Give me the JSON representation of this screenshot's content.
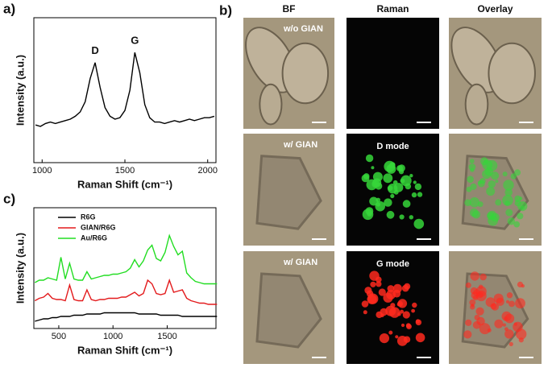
{
  "chart_data": [
    {
      "type": "line",
      "panel_label": "a)",
      "xlabel": "Raman Shift (cm⁻¹)",
      "ylabel": "Intensity (a.u.)",
      "xlim": [
        950,
        2050
      ],
      "xticks": [
        1000,
        1500,
        2000
      ],
      "ylim": [
        0,
        1
      ],
      "color": "#000000",
      "x": [
        960,
        990,
        1020,
        1050,
        1080,
        1110,
        1140,
        1170,
        1200,
        1230,
        1260,
        1290,
        1320,
        1350,
        1380,
        1410,
        1440,
        1470,
        1500,
        1530,
        1560,
        1590,
        1620,
        1650,
        1680,
        1710,
        1740,
        1770,
        1800,
        1830,
        1860,
        1890,
        1920,
        1950,
        1980,
        2010,
        2040
      ],
      "values": [
        0.26,
        0.25,
        0.27,
        0.28,
        0.27,
        0.28,
        0.29,
        0.3,
        0.32,
        0.35,
        0.42,
        0.58,
        0.69,
        0.52,
        0.38,
        0.32,
        0.3,
        0.31,
        0.36,
        0.5,
        0.76,
        0.62,
        0.4,
        0.31,
        0.28,
        0.28,
        0.27,
        0.28,
        0.29,
        0.28,
        0.29,
        0.3,
        0.29,
        0.3,
        0.31,
        0.31,
        0.32
      ],
      "annotations": [
        {
          "text": "D",
          "x": 1320,
          "y": 0.69
        },
        {
          "text": "G",
          "x": 1560,
          "y": 0.76
        }
      ]
    },
    {
      "type": "line",
      "panel_label": "c)",
      "xlabel": "Raman Shift (cm⁻¹)",
      "ylabel": "Intensity (a.u.)",
      "xlim": [
        270,
        1950
      ],
      "xticks": [
        500,
        1000,
        1500
      ],
      "ylim": [
        0,
        10
      ],
      "legend": "upper left",
      "x": [
        280,
        320,
        360,
        400,
        440,
        480,
        520,
        560,
        600,
        640,
        680,
        720,
        760,
        800,
        840,
        880,
        920,
        960,
        1000,
        1040,
        1080,
        1120,
        1160,
        1200,
        1240,
        1280,
        1320,
        1360,
        1400,
        1440,
        1480,
        1520,
        1560,
        1600,
        1640,
        1680,
        1720,
        1760,
        1800,
        1840,
        1880,
        1920,
        1960
      ],
      "series": [
        {
          "name": "R6G",
          "color": "#000000",
          "values": [
            0.6,
            0.7,
            0.8,
            0.8,
            0.9,
            0.9,
            1.0,
            1.0,
            1.0,
            1.1,
            1.1,
            1.1,
            1.2,
            1.2,
            1.2,
            1.2,
            1.3,
            1.3,
            1.3,
            1.3,
            1.3,
            1.3,
            1.3,
            1.3,
            1.2,
            1.2,
            1.2,
            1.2,
            1.2,
            1.1,
            1.1,
            1.1,
            1.1,
            1.1,
            1.0,
            1.0,
            1.0,
            1.0,
            1.0,
            1.0,
            1.0,
            1.0,
            1.0
          ]
        },
        {
          "name": "GIAN/R6G",
          "color": "#e31a1c",
          "values": [
            2.3,
            2.5,
            2.6,
            2.9,
            2.5,
            2.4,
            2.4,
            2.3,
            3.6,
            2.4,
            2.3,
            2.3,
            3.2,
            2.4,
            2.3,
            2.4,
            2.4,
            2.5,
            2.5,
            2.5,
            2.6,
            2.6,
            2.8,
            3.0,
            2.7,
            2.9,
            4.0,
            3.7,
            2.9,
            2.8,
            2.9,
            4.0,
            3.0,
            3.1,
            3.2,
            2.5,
            2.3,
            2.2,
            2.1,
            2.1,
            2.0,
            2.0,
            2.0
          ]
        },
        {
          "name": "Au/R6G",
          "color": "#22dd22",
          "values": [
            3.8,
            4.0,
            4.0,
            4.2,
            4.1,
            4.0,
            5.9,
            4.1,
            5.4,
            4.1,
            4.0,
            4.0,
            4.7,
            4.1,
            4.2,
            4.3,
            4.4,
            4.4,
            4.5,
            4.5,
            4.6,
            4.7,
            5.0,
            5.7,
            5.1,
            5.6,
            6.5,
            6.9,
            5.8,
            5.6,
            6.3,
            7.7,
            6.8,
            6.1,
            6.4,
            4.6,
            4.2,
            3.9,
            3.8,
            3.7,
            3.7,
            3.7,
            3.7
          ]
        }
      ]
    }
  ],
  "panel_b": {
    "label": "b)",
    "columns": [
      "BF",
      "Raman",
      "Overlay"
    ],
    "rows": [
      {
        "label": "w/o GIAN"
      },
      {
        "label": "w/ GIAN",
        "mode": "D mode"
      },
      {
        "label": "w/ GIAN",
        "mode": "G mode"
      }
    ]
  }
}
